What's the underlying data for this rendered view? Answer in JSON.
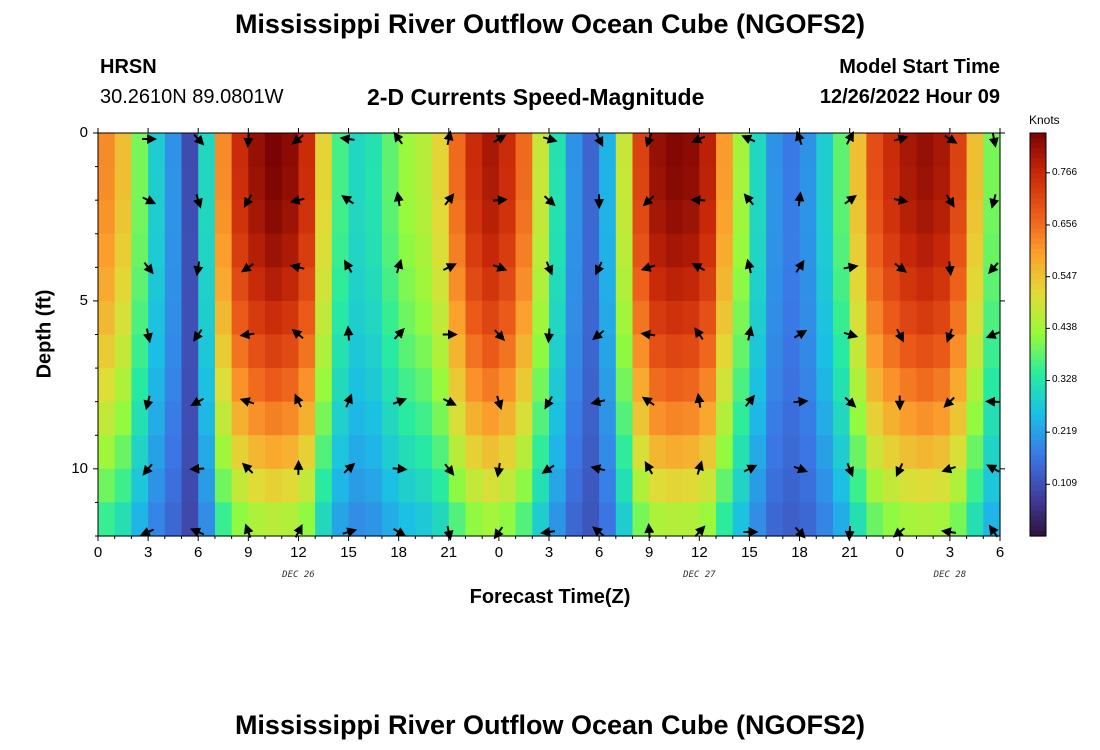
{
  "header": {
    "title": "Mississippi River Outflow Ocean Cube (NGOFS2)",
    "station_code": "HRSN",
    "station_coords": "30.2610N  89.0801W",
    "plot_title": "2-D Currents Speed-Magnitude",
    "model_label": "Model Start Time",
    "model_time": "12/26/2022 Hour 09"
  },
  "footer": {
    "title": "Mississippi River Outflow Ocean Cube (NGOFS2)"
  },
  "chart_data": {
    "type": "heatmap",
    "title": "2-D Currents Speed-Magnitude",
    "xlabel": "Forecast Time(Z)",
    "ylabel": "Depth (ft)",
    "x_hours_range": [
      0,
      54
    ],
    "x_ticks": [
      {
        "h": 0,
        "label": "0"
      },
      {
        "h": 3,
        "label": "3"
      },
      {
        "h": 6,
        "label": "6"
      },
      {
        "h": 9,
        "label": "9"
      },
      {
        "h": 12,
        "label": "12"
      },
      {
        "h": 15,
        "label": "15"
      },
      {
        "h": 18,
        "label": "18"
      },
      {
        "h": 21,
        "label": "21"
      },
      {
        "h": 24,
        "label": "0"
      },
      {
        "h": 27,
        "label": "3"
      },
      {
        "h": 30,
        "label": "6"
      },
      {
        "h": 33,
        "label": "9"
      },
      {
        "h": 36,
        "label": "12"
      },
      {
        "h": 39,
        "label": "15"
      },
      {
        "h": 42,
        "label": "18"
      },
      {
        "h": 45,
        "label": "21"
      },
      {
        "h": 48,
        "label": "0"
      },
      {
        "h": 51,
        "label": "3"
      },
      {
        "h": 54,
        "label": "6"
      }
    ],
    "date_labels": [
      {
        "h": 12,
        "label": "DEC 26"
      },
      {
        "h": 36,
        "label": "DEC 27"
      },
      {
        "h": 51,
        "label": "DEC 28"
      }
    ],
    "y_range": [
      0,
      12
    ],
    "y_ticks": [
      {
        "d": 0,
        "label": "0"
      },
      {
        "d": 5,
        "label": "5"
      },
      {
        "d": 10,
        "label": "10"
      }
    ],
    "colorbar": {
      "title": "Knots",
      "min": 0.0,
      "max": 0.85,
      "ticks": [
        {
          "v": 0.766,
          "label": "0.766"
        },
        {
          "v": 0.656,
          "label": "0.656"
        },
        {
          "v": 0.547,
          "label": "0.547"
        },
        {
          "v": 0.438,
          "label": "0.438"
        },
        {
          "v": 0.328,
          "label": "0.328"
        },
        {
          "v": 0.219,
          "label": "0.219"
        },
        {
          "v": 0.109,
          "label": "0.109"
        }
      ]
    },
    "speed_profile_surface": [
      {
        "h": 0,
        "v": 0.58
      },
      {
        "h": 1,
        "v": 0.62
      },
      {
        "h": 2,
        "v": 0.55
      },
      {
        "h": 3,
        "v": 0.4
      },
      {
        "h": 4,
        "v": 0.28
      },
      {
        "h": 5,
        "v": 0.2
      },
      {
        "h": 6,
        "v": 0.1
      },
      {
        "h": 7,
        "v": 0.3
      },
      {
        "h": 8,
        "v": 0.62
      },
      {
        "h": 9,
        "v": 0.76
      },
      {
        "h": 10,
        "v": 0.82
      },
      {
        "h": 11,
        "v": 0.85
      },
      {
        "h": 12,
        "v": 0.83
      },
      {
        "h": 13,
        "v": 0.76
      },
      {
        "h": 14,
        "v": 0.52
      },
      {
        "h": 15,
        "v": 0.36
      },
      {
        "h": 16,
        "v": 0.3
      },
      {
        "h": 17,
        "v": 0.32
      },
      {
        "h": 18,
        "v": 0.38
      },
      {
        "h": 19,
        "v": 0.43
      },
      {
        "h": 20,
        "v": 0.46
      },
      {
        "h": 21,
        "v": 0.52
      },
      {
        "h": 22,
        "v": 0.66
      },
      {
        "h": 23,
        "v": 0.76
      },
      {
        "h": 24,
        "v": 0.8
      },
      {
        "h": 25,
        "v": 0.76
      },
      {
        "h": 26,
        "v": 0.66
      },
      {
        "h": 27,
        "v": 0.48
      },
      {
        "h": 28,
        "v": 0.32
      },
      {
        "h": 29,
        "v": 0.2
      },
      {
        "h": 30,
        "v": 0.14
      },
      {
        "h": 31,
        "v": 0.24
      },
      {
        "h": 32,
        "v": 0.48
      },
      {
        "h": 33,
        "v": 0.72
      },
      {
        "h": 34,
        "v": 0.82
      },
      {
        "h": 35,
        "v": 0.84
      },
      {
        "h": 36,
        "v": 0.83
      },
      {
        "h": 37,
        "v": 0.78
      },
      {
        "h": 38,
        "v": 0.6
      },
      {
        "h": 39,
        "v": 0.44
      },
      {
        "h": 40,
        "v": 0.3
      },
      {
        "h": 41,
        "v": 0.2
      },
      {
        "h": 42,
        "v": 0.17
      },
      {
        "h": 43,
        "v": 0.2
      },
      {
        "h": 44,
        "v": 0.28
      },
      {
        "h": 45,
        "v": 0.38
      },
      {
        "h": 46,
        "v": 0.55
      },
      {
        "h": 47,
        "v": 0.7
      },
      {
        "h": 48,
        "v": 0.76
      },
      {
        "h": 49,
        "v": 0.8
      },
      {
        "h": 50,
        "v": 0.82
      },
      {
        "h": 51,
        "v": 0.8
      },
      {
        "h": 52,
        "v": 0.72
      },
      {
        "h": 53,
        "v": 0.55
      },
      {
        "h": 54,
        "v": 0.4
      }
    ],
    "arrow_times_hours": [
      3,
      6,
      9,
      12,
      15,
      18,
      21,
      24,
      27,
      30,
      33,
      36,
      39,
      42,
      45,
      48,
      51,
      54
    ],
    "arrow_depths_ft": [
      0,
      2,
      4,
      6,
      8,
      10,
      12
    ]
  }
}
